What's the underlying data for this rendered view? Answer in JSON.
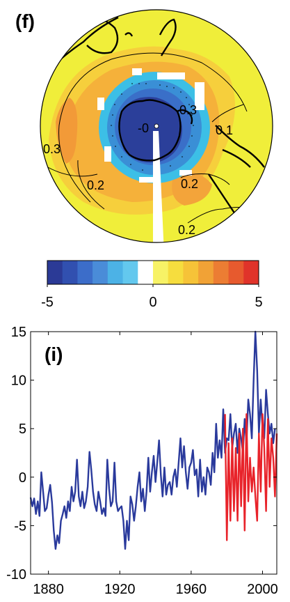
{
  "colors": {
    "background_map": "#f0ee3a",
    "orange_band": "#f5b13a",
    "light_orange": "#f6cf3c",
    "cyan_ring": "#3cbfe6",
    "blue_inner": "#3a6fc8",
    "navy_center": "#2b3f9a",
    "series_blue": "#2a3a9c",
    "series_red": "#e8232a"
  },
  "map_panel": {
    "panel_label": "(f)",
    "contour_labels": [
      "0.3",
      "0.1",
      "0.3",
      "0.2",
      "0.2",
      "0.2",
      "-0"
    ]
  },
  "colorbar": {
    "min_label": "-5",
    "mid_label": "0",
    "max_label": "5",
    "range": [
      -5,
      5
    ],
    "colors": [
      "#2b3a96",
      "#3150b0",
      "#3c6dc9",
      "#4a8cd8",
      "#4cb2e6",
      "#63c8ee",
      "#ffffff",
      "#f7f266",
      "#f6dd3e",
      "#f6c338",
      "#f1a236",
      "#ec7d33",
      "#e75a2e",
      "#e0332a"
    ]
  },
  "chart_data": {
    "type": "line",
    "panel_label": "(i)",
    "title": "",
    "xlabel": "",
    "ylabel": "",
    "xlim": [
      1870,
      2008
    ],
    "ylim": [
      -10,
      15
    ],
    "x_ticks": [
      "1880",
      "1920",
      "1960",
      "2000"
    ],
    "y_ticks": [
      "-10",
      "-5",
      "0",
      "5",
      "10",
      "15"
    ],
    "grid": false,
    "legend": "none",
    "series": [
      {
        "color": "#2a3a9c",
        "x_start": 1870,
        "values": [
          -2.1,
          -3.0,
          -2.2,
          -3.8,
          -2.5,
          -4.0,
          0.5,
          -1.5,
          -3.5,
          -3.2,
          -1.8,
          -0.8,
          -2.6,
          -5.5,
          -7.4,
          -6.0,
          -6.8,
          -4.5,
          -3.8,
          -3.0,
          -4.2,
          -2.5,
          -3.5,
          -1.0,
          -2.5,
          -1.5,
          1.8,
          -2.0,
          -3.0,
          -1.5,
          -3.2,
          -2.5,
          -1.0,
          2.6,
          0.8,
          -1.5,
          -2.8,
          -3.5,
          -1.5,
          -2.5,
          -3.8,
          -3.2,
          -4.0,
          1.8,
          -1.2,
          -3.0,
          -2.5,
          1.5,
          -2.5,
          -3.5,
          -3.2,
          -3.0,
          -4.5,
          -7.4,
          -4.5,
          -6.5,
          -2.0,
          -2.8,
          -4.5,
          -3.0,
          -1.0,
          0.5,
          -2.5,
          -1.2,
          -3.5,
          -1.5,
          2.0,
          -1.5,
          0.5,
          2.2,
          -0.5,
          1.5,
          3.8,
          0.2,
          -2.0,
          1.0,
          -1.8,
          -0.8,
          -0.5,
          -1.8,
          0.0,
          0.8,
          -1.0,
          1.5,
          4.0,
          1.0,
          3.2,
          0.5,
          -1.2,
          1.0,
          1.5,
          2.8,
          0.2,
          0.8,
          -2.0,
          1.8,
          -1.5,
          0.0,
          -1.8,
          1.0,
          0.5,
          -0.8,
          2.5,
          0.5,
          5.5,
          2.0,
          3.8,
          2.0,
          7.0,
          2.5,
          4.0,
          3.8,
          6.5,
          3.0,
          4.5,
          5.5,
          2.5,
          5.0,
          4.0,
          2.5,
          6.0,
          3.5,
          8.0,
          6.5,
          4.0,
          10.0,
          15.0,
          11.0,
          4.5,
          8.0,
          5.0,
          4.0,
          9.0,
          6.5,
          4.5,
          5.5,
          3.5,
          5.0
        ]
      },
      {
        "color": "#e8232a",
        "x_start": 1979,
        "values": [
          6.5,
          -6.5,
          3.5,
          -4.5,
          4.0,
          -3.5,
          3.0,
          -4.5,
          4.5,
          -3.0,
          5.0,
          -5.5,
          6.5,
          -2.5,
          2.0,
          -1.5,
          1.0,
          -2.0,
          -4.5,
          4.5,
          -1.5,
          6.5,
          3.0,
          -3.5,
          6.0,
          -1.0,
          4.0,
          2.0,
          -2.0,
          4.5
        ]
      }
    ]
  }
}
